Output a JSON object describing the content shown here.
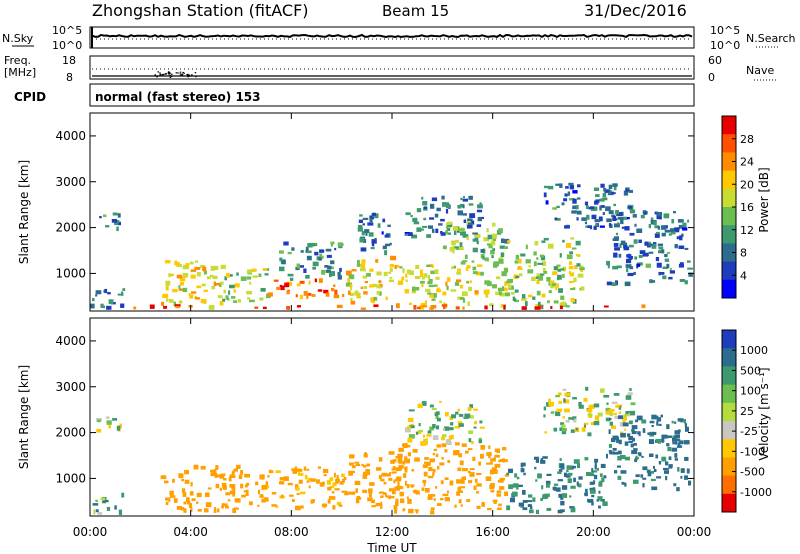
{
  "header": {
    "station": "Zhongshan Station (fitACF)",
    "beam": "Beam 15",
    "date": "31/Dec/2016"
  },
  "sky_panel": {
    "left_label": "N.Sky",
    "right_label": "N.Search",
    "left_ticks": [
      "10^5",
      "10^0"
    ],
    "right_ticks": [
      "10^5",
      "10^0"
    ]
  },
  "freq_panel": {
    "left_label_1": "Freq.",
    "left_label_2": "[MHz]",
    "right_label": "Nave",
    "left_ticks": [
      "18",
      "8"
    ],
    "right_ticks": [
      "60",
      "0"
    ]
  },
  "cpid": {
    "label": "CPID",
    "text": "normal (fast stereo) 153"
  },
  "x_axis": {
    "label": "Time UT",
    "ticks": [
      "00:00",
      "04:00",
      "08:00",
      "12:00",
      "16:00",
      "20:00",
      "00:00"
    ]
  },
  "power_colorbar": {
    "label": "Power [dB]",
    "ticks": [
      "28",
      "24",
      "20",
      "16",
      "12",
      "8",
      "4"
    ],
    "colors": [
      "#e80000",
      "#ff5000",
      "#ff8c00",
      "#ffc800",
      "#c8dc32",
      "#6cbe50",
      "#3c9a6e",
      "#2c6c8c",
      "#1e3cbe",
      "#0000ff"
    ]
  },
  "velocity_colorbar": {
    "label": "Velocity [m s⁻¹]",
    "ticks": [
      "1000",
      "500",
      "100",
      "25",
      "-25",
      "-100",
      "-500",
      "-1000"
    ],
    "colors": [
      "#1e3cbe",
      "#2c6c8c",
      "#3c9a6e",
      "#6cbe50",
      "#b4dc3c",
      "#c8c8c0",
      "#ffc800",
      "#ffa000",
      "#ff6e00",
      "#e80000"
    ]
  },
  "chart_data": [
    {
      "type": "heatmap",
      "title": "Power",
      "xlabel": "Time UT",
      "ylabel": "Slant Range [km]",
      "xlim": [
        "00:00",
        "24:00"
      ],
      "ylim": [
        180,
        4500
      ],
      "y_ticks": [
        "1000",
        "2000",
        "3000",
        "4000"
      ],
      "colorbar_label": "Power [dB]",
      "colorbar_range": [
        0,
        32
      ],
      "regions": [
        {
          "t0": 0.0,
          "t1": 1.4,
          "r0": 180,
          "r1": 700,
          "v": 8
        },
        {
          "t0": 0.2,
          "t1": 1.2,
          "r0": 2000,
          "r1": 2400,
          "v": 8
        },
        {
          "t0": 2.8,
          "t1": 5.0,
          "r0": 300,
          "r1": 1300,
          "v": 20
        },
        {
          "t0": 5.0,
          "t1": 7.0,
          "r0": 400,
          "r1": 1200,
          "v": 16
        },
        {
          "t0": 7.0,
          "t1": 9.8,
          "r0": 500,
          "r1": 900,
          "v": 26
        },
        {
          "t0": 7.5,
          "t1": 10.0,
          "r0": 900,
          "r1": 1700,
          "v": 10
        },
        {
          "t0": 10.0,
          "t1": 12.0,
          "r0": 400,
          "r1": 1400,
          "v": 20
        },
        {
          "t0": 10.5,
          "t1": 12.0,
          "r0": 1500,
          "r1": 2400,
          "v": 8
        },
        {
          "t0": 12.0,
          "t1": 16.5,
          "r0": 300,
          "r1": 1200,
          "v": 18
        },
        {
          "t0": 12.5,
          "t1": 15.5,
          "r0": 1800,
          "r1": 2700,
          "v": 8
        },
        {
          "t0": 14.0,
          "t1": 16.5,
          "r0": 1200,
          "r1": 2200,
          "v": 14
        },
        {
          "t0": 16.5,
          "t1": 19.5,
          "r0": 300,
          "r1": 1800,
          "v": 16
        },
        {
          "t0": 18.0,
          "t1": 21.5,
          "r0": 2000,
          "r1": 3000,
          "v": 8
        },
        {
          "t0": 20.5,
          "t1": 23.8,
          "r0": 800,
          "r1": 2400,
          "v": 8
        },
        {
          "t0": 0.0,
          "t1": 24.0,
          "r0": 180,
          "r1": 330,
          "v": 28
        }
      ]
    },
    {
      "type": "heatmap",
      "title": "Velocity",
      "xlabel": "Time UT",
      "ylabel": "Slant Range [km]",
      "xlim": [
        "00:00",
        "24:00"
      ],
      "ylim": [
        180,
        4500
      ],
      "y_ticks": [
        "1000",
        "2000",
        "3000",
        "4000"
      ],
      "colorbar_label": "Velocity [m s⁻¹]",
      "colorbar_range": [
        -1000,
        1000
      ],
      "regions": [
        {
          "t0": 0.0,
          "t1": 1.4,
          "r0": 180,
          "r1": 700,
          "v": 60
        },
        {
          "t0": 0.2,
          "t1": 1.2,
          "r0": 2000,
          "r1": 2400,
          "v": 0
        },
        {
          "t0": 2.8,
          "t1": 6.0,
          "r0": 300,
          "r1": 1300,
          "v": -200
        },
        {
          "t0": 6.0,
          "t1": 10.0,
          "r0": 400,
          "r1": 1300,
          "v": -150
        },
        {
          "t0": 10.0,
          "t1": 12.0,
          "r0": 400,
          "r1": 1600,
          "v": -300
        },
        {
          "t0": 12.0,
          "t1": 16.5,
          "r0": 300,
          "r1": 1800,
          "v": -400
        },
        {
          "t0": 12.5,
          "t1": 15.5,
          "r0": 1800,
          "r1": 2700,
          "v": 0
        },
        {
          "t0": 16.5,
          "t1": 20.5,
          "r0": 300,
          "r1": 1500,
          "v": 120
        },
        {
          "t0": 18.0,
          "t1": 21.5,
          "r0": 2000,
          "r1": 3000,
          "v": 0
        },
        {
          "t0": 20.5,
          "t1": 23.8,
          "r0": 800,
          "r1": 2400,
          "v": 150
        }
      ]
    }
  ]
}
